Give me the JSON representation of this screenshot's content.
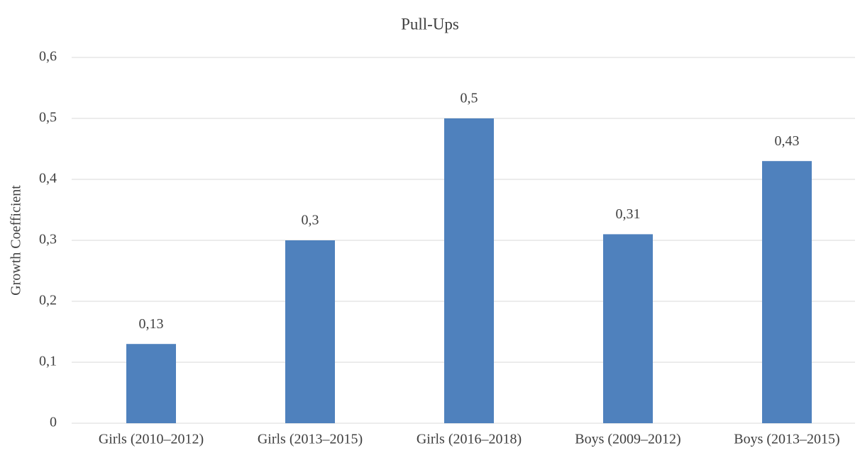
{
  "chart_data": {
    "type": "bar",
    "title": "Pull-Ups",
    "y_label": "Growth Coefficient",
    "categories": [
      "Girls (2010–2012)",
      "Girls (2013–2015)",
      "Girls (2016–2018)",
      "Boys (2009–2012)",
      "Boys (2013–2015)"
    ],
    "values": [
      0.13,
      0.3,
      0.5,
      0.31,
      0.43
    ],
    "value_labels": [
      "0,13",
      "0,3",
      "0,5",
      "0,31",
      "0,43"
    ],
    "color": "#4f81bd",
    "ylim": [
      0,
      0.6
    ],
    "yticks": [
      0,
      {
        "value": 0.1,
        "label": "0,1"
      },
      {
        "value": 0.2,
        "label": "0,2"
      },
      {
        "value": 0.3,
        "label": "0,3"
      },
      {
        "value": 0.4,
        "label": "0,4"
      },
      {
        "value": 0.5,
        "label": "0,5"
      },
      {
        "value": 0.6,
        "label": "0,6"
      }
    ],
    "grid": true
  }
}
